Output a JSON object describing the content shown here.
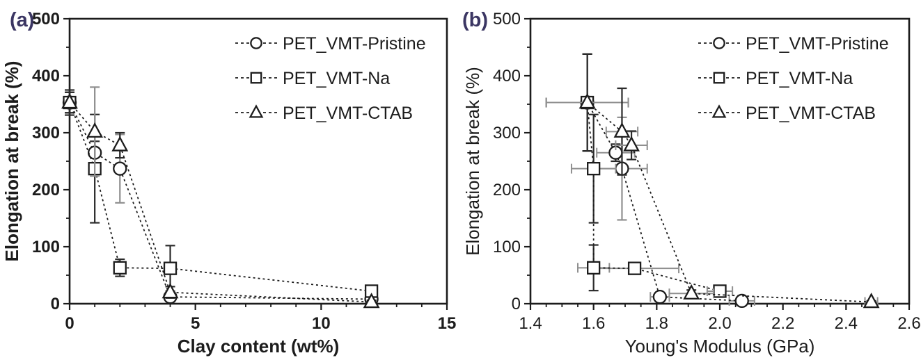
{
  "figure": {
    "description": "Two-panel scatter chart of elongation at break for PET vermiculite nanocomposites",
    "shared_ylabel": "Elongation at break (%)"
  },
  "colors": {
    "ink": "#1c1c1c",
    "error_gray": "#8f8f8f",
    "panel_label": "#3b3663",
    "background": "#ffffff"
  },
  "legend": [
    {
      "label": "PET_VMT-Pristine",
      "marker": "circle"
    },
    {
      "label": "PET_VMT-Na",
      "marker": "square"
    },
    {
      "label": "PET_VMT-CTAB",
      "marker": "triangle"
    }
  ],
  "chart_data": [
    {
      "type": "scatter",
      "id": "a",
      "panel_label": "(a)",
      "title": "",
      "xlabel": "Clay content (wt%)",
      "ylabel": "Elongation at break (%)",
      "xlim": [
        0,
        15
      ],
      "ylim": [
        0,
        500
      ],
      "xticks": [
        0,
        5,
        10,
        15
      ],
      "x_minor_step": 1,
      "yticks": [
        0,
        100,
        200,
        300,
        400,
        500
      ],
      "y_minor_step": 50,
      "x_decimals": 0,
      "grid": false,
      "frame": "box",
      "legend_position": "top-right-inside",
      "line_style": "dashed",
      "series": [
        {
          "name": "PET_VMT-Pristine",
          "marker": "circle",
          "points": [
            {
              "x": 0,
              "y": 353,
              "ey": 18
            },
            {
              "x": 1,
              "y": 265,
              "ey": 20
            },
            {
              "x": 2,
              "y": 237,
              "ey": 60,
              "eg": 1
            },
            {
              "x": 4,
              "y": 12,
              "ey": 8
            },
            {
              "x": 12,
              "y": 8,
              "ey": 5
            }
          ]
        },
        {
          "name": "PET_VMT-Na",
          "marker": "square",
          "points": [
            {
              "x": 0,
              "y": 353,
              "ey": 18
            },
            {
              "x": 1,
              "y": 237,
              "ey": 95
            },
            {
              "x": 2,
              "y": 63,
              "ey": 15
            },
            {
              "x": 4,
              "y": 62,
              "ey": 40
            },
            {
              "x": 12,
              "y": 22,
              "ey": 8
            }
          ]
        },
        {
          "name": "PET_VMT-CTAB",
          "marker": "triangle",
          "points": [
            {
              "x": 0,
              "y": 353,
              "ey": 22
            },
            {
              "x": 1,
              "y": 302,
              "ey": 78,
              "eg": 1
            },
            {
              "x": 2,
              "y": 278,
              "ey": 22
            },
            {
              "x": 4,
              "y": 20,
              "ey": 10
            },
            {
              "x": 12,
              "y": 3,
              "ey": 3
            }
          ]
        }
      ]
    },
    {
      "type": "scatter",
      "id": "b",
      "panel_label": "(b)",
      "title": "",
      "xlabel": "Young's Modulus (GPa)",
      "ylabel": "Elongation at break (%)",
      "xlim": [
        1.4,
        2.6
      ],
      "ylim": [
        0,
        500
      ],
      "xticks": [
        1.4,
        1.6,
        1.8,
        2.0,
        2.2,
        2.4,
        2.6
      ],
      "x_minor_step": 0.05,
      "yticks": [
        0,
        100,
        200,
        300,
        400,
        500
      ],
      "y_minor_step": 50,
      "x_decimals": 1,
      "grid": false,
      "frame": "box",
      "legend_position": "top-right-inside",
      "line_style": "dashed",
      "series": [
        {
          "name": "PET_VMT-Pristine",
          "marker": "circle",
          "points": [
            {
              "x": 1.58,
              "y": 353,
              "ex": 0.13,
              "ey": 85
            },
            {
              "x": 1.67,
              "y": 265,
              "ex": 0.06,
              "ey": 15
            },
            {
              "x": 1.69,
              "y": 237,
              "ex": 0.08,
              "ey": 90,
              "eg": 1
            },
            {
              "x": 1.81,
              "y": 12,
              "ex": 0.03,
              "ey": 6
            },
            {
              "x": 2.07,
              "y": 5,
              "ex": 0.04,
              "ey": 3
            }
          ]
        },
        {
          "name": "PET_VMT-Na",
          "marker": "square",
          "points": [
            {
              "x": 1.58,
              "y": 353,
              "ex": 0.13,
              "ey": 85
            },
            {
              "x": 1.6,
              "y": 237,
              "ex": 0.07,
              "ey": 95
            },
            {
              "x": 1.6,
              "y": 63,
              "ex": 0.05,
              "ey": 40
            },
            {
              "x": 1.73,
              "y": 62,
              "ex": 0.14,
              "ey": 10
            },
            {
              "x": 2.0,
              "y": 22,
              "ex": 0.04,
              "ey": 5
            }
          ]
        },
        {
          "name": "PET_VMT-CTAB",
          "marker": "triangle",
          "points": [
            {
              "x": 1.58,
              "y": 353,
              "ex": 0.13,
              "ey": 85
            },
            {
              "x": 1.69,
              "y": 302,
              "ex": 0.05,
              "ey": 76
            },
            {
              "x": 1.72,
              "y": 278,
              "ex": 0.05,
              "ey": 25
            },
            {
              "x": 1.91,
              "y": 18,
              "ex": 0.07,
              "ey": 6
            },
            {
              "x": 2.48,
              "y": 3,
              "ex": 0.02,
              "ey": 2
            }
          ]
        }
      ]
    }
  ]
}
